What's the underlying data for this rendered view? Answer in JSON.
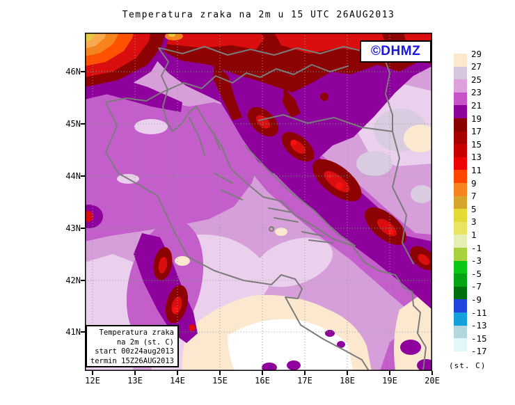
{
  "title": "Temperatura zraka na 2m u 15 UTC 26AUG2013",
  "watermark": {
    "text": "©DHMZ",
    "color": "#1a18e0"
  },
  "info_box": {
    "lines": [
      "Temperatura zraka",
      "na 2m (st. C)",
      "start 00z24aug2013",
      "termin 15Z26AUG2013"
    ]
  },
  "axes": {
    "lat": [
      "46N",
      "45N",
      "44N",
      "43N",
      "42N",
      "41N"
    ],
    "lon": [
      "12E",
      "13E",
      "14E",
      "15E",
      "16E",
      "17E",
      "18E",
      "19E",
      "20E"
    ]
  },
  "colorbar": {
    "unit": "(st. C)",
    "labels": [
      "29",
      "27",
      "25",
      "23",
      "21",
      "19",
      "17",
      "15",
      "13",
      "11",
      "9",
      "7",
      "5",
      "3",
      "1",
      "-1",
      "-3",
      "-5",
      "-7",
      "-9",
      "-11",
      "-13",
      "-15",
      "-17"
    ],
    "colors": [
      "#fbe8cf",
      "#d5c6dc",
      "#dda0dd",
      "#c653c8",
      "#8e019c",
      "#8b0000",
      "#a80000",
      "#c80000",
      "#ee0404",
      "#ff4600",
      "#f5841c",
      "#d7a52e",
      "#e3da35",
      "#e9e464",
      "#e6edb5",
      "#a8d23c",
      "#0cc814",
      "#06a314",
      "#00700e",
      "#2145dd",
      "#14a0dc",
      "#b4d7de",
      "#e1f7fa"
    ]
  }
}
